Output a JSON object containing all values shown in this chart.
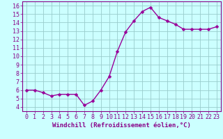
{
  "x": [
    0,
    1,
    2,
    3,
    4,
    5,
    6,
    7,
    8,
    9,
    10,
    11,
    12,
    13,
    14,
    15,
    16,
    17,
    18,
    19,
    20,
    21,
    22,
    23
  ],
  "y": [
    6.0,
    6.0,
    5.7,
    5.3,
    5.5,
    5.5,
    5.5,
    4.2,
    4.7,
    6.0,
    7.6,
    10.6,
    12.9,
    14.2,
    15.3,
    15.8,
    14.6,
    14.2,
    13.8,
    13.2,
    13.2,
    13.2,
    13.2,
    13.5
  ],
  "line_color": "#990099",
  "marker": "D",
  "marker_size": 2.5,
  "bg_color": "#ccffff",
  "grid_color": "#99cccc",
  "xlabel": "Windchill (Refroidissement éolien,°C)",
  "xlim": [
    -0.5,
    23.5
  ],
  "ylim": [
    3.5,
    16.5
  ],
  "yticks": [
    4,
    5,
    6,
    7,
    8,
    9,
    10,
    11,
    12,
    13,
    14,
    15,
    16
  ],
  "xticks": [
    0,
    1,
    2,
    3,
    4,
    5,
    6,
    7,
    8,
    9,
    10,
    11,
    12,
    13,
    14,
    15,
    16,
    17,
    18,
    19,
    20,
    21,
    22,
    23
  ],
  "xlabel_fontsize": 6.5,
  "tick_fontsize": 6.0,
  "axis_label_color": "#880088",
  "tick_color": "#880088",
  "spine_color": "#880088",
  "line_width": 1.0
}
